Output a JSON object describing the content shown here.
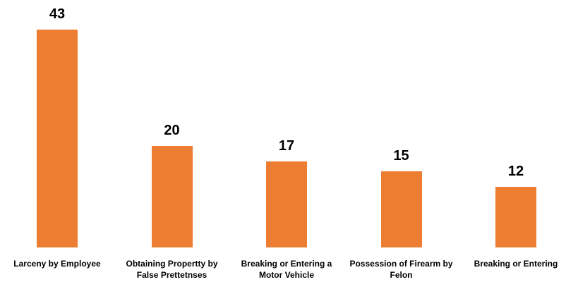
{
  "chart_data": {
    "type": "bar",
    "categories": [
      "Larceny by Employee",
      "Obtaining Propertty by False Prettetnses",
      "Breaking or Entering a Motor Vehicle",
      "Possession of Firearm by Felon",
      "Breaking or Entering"
    ],
    "values": [
      43,
      20,
      17,
      15,
      12
    ],
    "color": "#ed7d31"
  }
}
